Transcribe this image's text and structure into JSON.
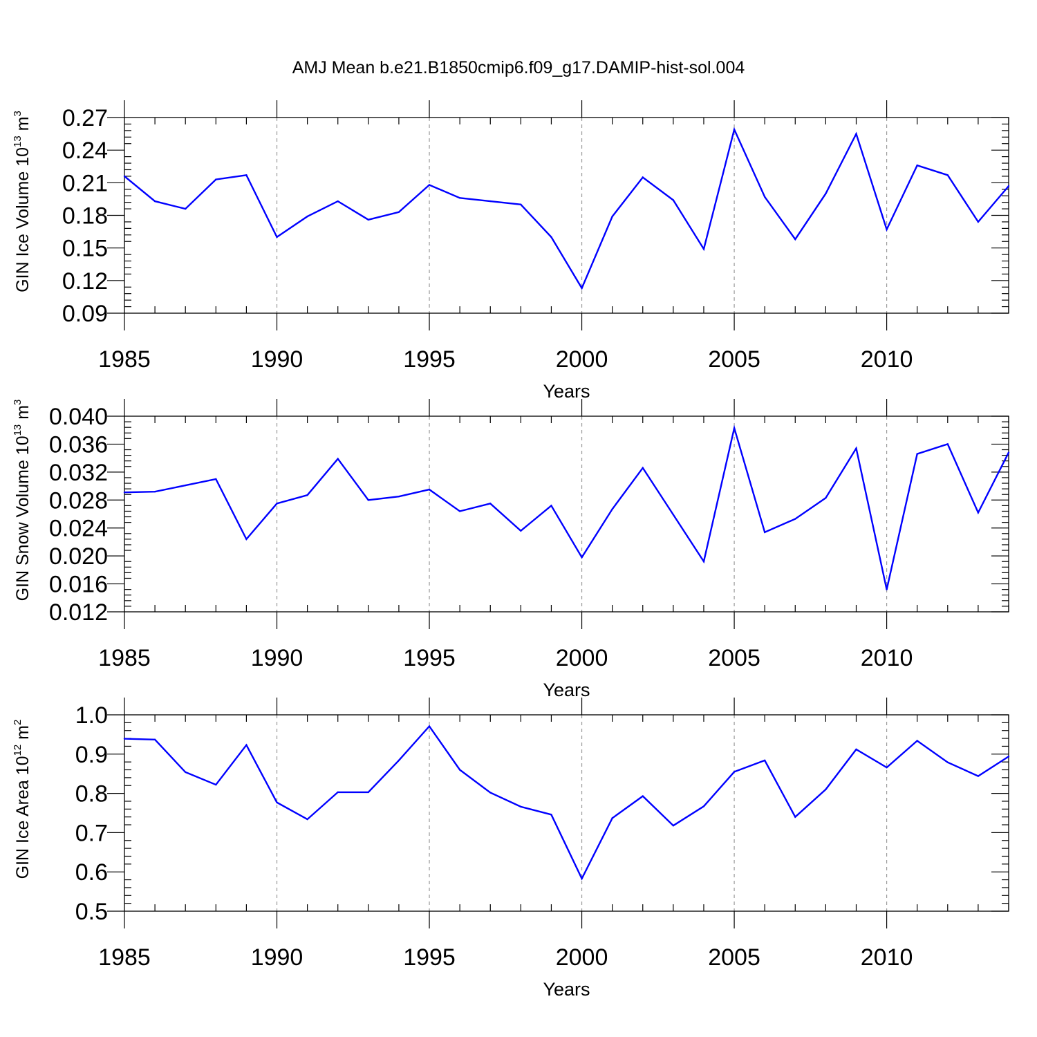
{
  "page": {
    "title": "AMJ Mean b.e21.B1850cmip6.f09_g17.DAMIP-hist-sol.004"
  },
  "style": {
    "line_color": "#0000ff",
    "axis_color": "#000000",
    "grid_color": "#999999"
  },
  "chart_data": [
    {
      "type": "line",
      "title": "AMJ Mean b.e21.B1850cmip6.f09_g17.DAMIP-hist-sol.004",
      "xlabel": "Years",
      "ylabel": {
        "text": "GIN Ice Volume 10",
        "exp": "13",
        "unit": " m",
        "unit_exp": "3"
      },
      "x": [
        1985,
        1986,
        1987,
        1988,
        1989,
        1990,
        1991,
        1992,
        1993,
        1994,
        1995,
        1996,
        1997,
        1998,
        1999,
        2000,
        2001,
        2002,
        2003,
        2004,
        2005,
        2006,
        2007,
        2008,
        2009,
        2010,
        2011,
        2012,
        2013,
        2014
      ],
      "series": [
        {
          "name": "GIN Ice Volume",
          "values": [
            0.216,
            0.193,
            0.186,
            0.213,
            0.217,
            0.16,
            0.179,
            0.193,
            0.176,
            0.183,
            0.208,
            0.196,
            0.193,
            0.19,
            0.16,
            0.113,
            0.179,
            0.215,
            0.194,
            0.149,
            0.259,
            0.197,
            0.158,
            0.2,
            0.255,
            0.167,
            0.226,
            0.217,
            0.174,
            0.207
          ]
        }
      ],
      "xlim": [
        1985,
        2014
      ],
      "ylim": [
        0.09,
        0.27
      ],
      "xticks": [
        1985,
        1990,
        1995,
        2000,
        2005,
        2010
      ],
      "xtick_labels": [
        "1985",
        "1990",
        "1995",
        "2000",
        "2005",
        "2010"
      ],
      "yticks": [
        0.09,
        0.12,
        0.15,
        0.18,
        0.21,
        0.24,
        0.27
      ],
      "ytick_labels": [
        "0.09",
        "0.12",
        "0.15",
        "0.18",
        "0.21",
        "0.24",
        "0.27"
      ],
      "grid": "vertical dashed at major x ticks"
    },
    {
      "type": "line",
      "xlabel": "Years",
      "ylabel": {
        "text": "GIN Snow Volume 10",
        "exp": "13",
        "unit": " m",
        "unit_exp": "3"
      },
      "x": [
        1985,
        1986,
        1987,
        1988,
        1989,
        1990,
        1991,
        1992,
        1993,
        1994,
        1995,
        1996,
        1997,
        1998,
        1999,
        2000,
        2001,
        2002,
        2003,
        2004,
        2005,
        2006,
        2007,
        2008,
        2009,
        2010,
        2011,
        2012,
        2013,
        2014
      ],
      "series": [
        {
          "name": "GIN Snow Volume",
          "values": [
            0.0291,
            0.0292,
            0.0301,
            0.031,
            0.0224,
            0.0275,
            0.0287,
            0.0339,
            0.028,
            0.0285,
            0.0295,
            0.0264,
            0.0275,
            0.0236,
            0.0272,
            0.0198,
            0.0267,
            0.0326,
            0.0259,
            0.0192,
            0.0383,
            0.0234,
            0.0253,
            0.0283,
            0.0354,
            0.0152,
            0.0346,
            0.036,
            0.0262,
            0.0348
          ]
        }
      ],
      "xlim": [
        1985,
        2014
      ],
      "ylim": [
        0.012,
        0.04
      ],
      "xticks": [
        1985,
        1990,
        1995,
        2000,
        2005,
        2010
      ],
      "xtick_labels": [
        "1985",
        "1990",
        "1995",
        "2000",
        "2005",
        "2010"
      ],
      "yticks": [
        0.012,
        0.016,
        0.02,
        0.024,
        0.028,
        0.032,
        0.036,
        0.04
      ],
      "ytick_labels": [
        "0.012",
        "0.016",
        "0.020",
        "0.024",
        "0.028",
        "0.032",
        "0.036",
        "0.040"
      ],
      "grid": "vertical dashed at major x ticks"
    },
    {
      "type": "line",
      "xlabel": "Years",
      "ylabel": {
        "text": "GIN Ice Area 10",
        "exp": "12",
        "unit": " m",
        "unit_exp": "2"
      },
      "x": [
        1985,
        1986,
        1987,
        1988,
        1989,
        1990,
        1991,
        1992,
        1993,
        1994,
        1995,
        1996,
        1997,
        1998,
        1999,
        2000,
        2001,
        2002,
        2003,
        2004,
        2005,
        2006,
        2007,
        2008,
        2009,
        2010,
        2011,
        2012,
        2013,
        2014
      ],
      "series": [
        {
          "name": "GIN Ice Area",
          "values": [
            0.939,
            0.937,
            0.854,
            0.822,
            0.923,
            0.777,
            0.734,
            0.803,
            0.803,
            0.884,
            0.971,
            0.86,
            0.802,
            0.766,
            0.746,
            0.583,
            0.737,
            0.793,
            0.718,
            0.767,
            0.855,
            0.884,
            0.74,
            0.81,
            0.912,
            0.866,
            0.934,
            0.879,
            0.844,
            0.894
          ]
        }
      ],
      "xlim": [
        1985,
        2014
      ],
      "ylim": [
        0.5,
        1.0
      ],
      "xticks": [
        1985,
        1990,
        1995,
        2000,
        2005,
        2010
      ],
      "xtick_labels": [
        "1985",
        "1990",
        "1995",
        "2000",
        "2005",
        "2010"
      ],
      "yticks": [
        0.5,
        0.6,
        0.7,
        0.8,
        0.9,
        1.0
      ],
      "ytick_labels": [
        "0.5",
        "0.6",
        "0.7",
        "0.8",
        "0.9",
        "1.0"
      ],
      "grid": "vertical dashed at major x ticks"
    }
  ]
}
